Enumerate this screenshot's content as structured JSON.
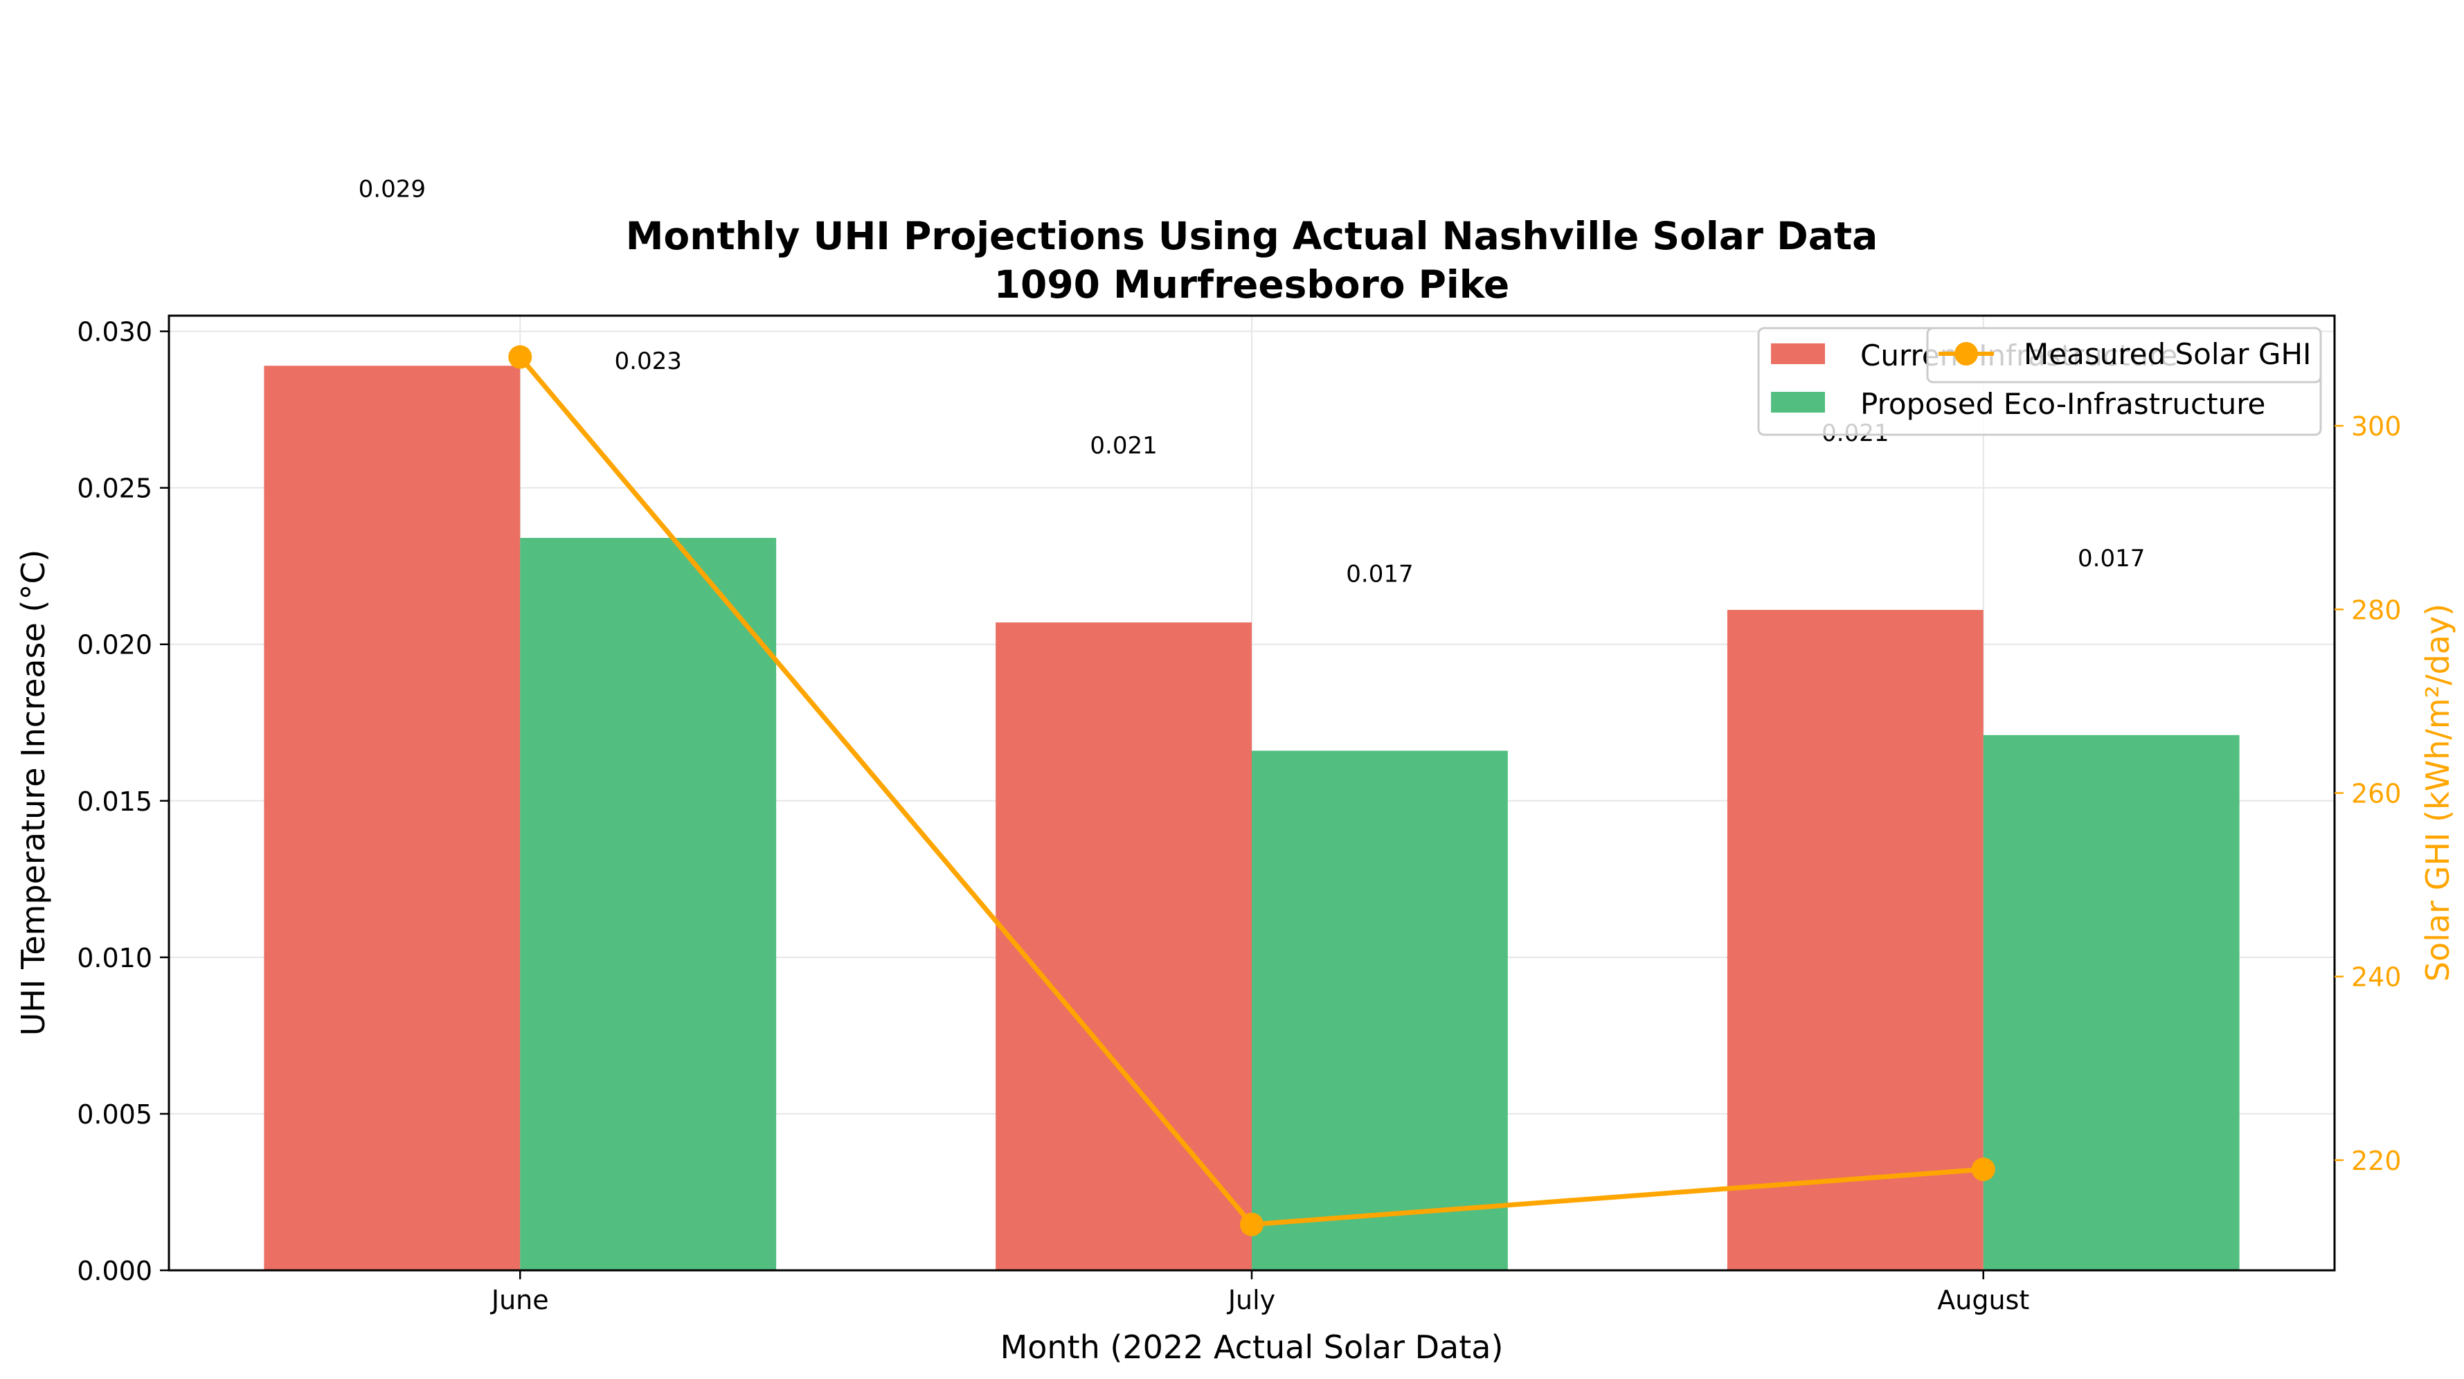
{
  "chart_data": {
    "type": "bar",
    "title": "Monthly UHI Projections Using Actual Nashville Solar Data",
    "subtitle": "1090 Murfreesboro Pike",
    "xlabel": "Month (2022 Actual Solar Data)",
    "ylabel": "UHI Temperature Increase (°C)",
    "y2label": "Solar GHI (kWh/m²/day)",
    "categories": [
      "June",
      "July",
      "August"
    ],
    "ylim": [
      0,
      0.0305
    ],
    "yticks": [
      "0.000",
      "0.005",
      "0.010",
      "0.015",
      "0.020",
      "0.025",
      "0.030"
    ],
    "y2lim": [
      208,
      312
    ],
    "y2ticks": [
      "220",
      "240",
      "260",
      "280",
      "300"
    ],
    "grid": true,
    "series": [
      {
        "name": "Current Infrastructure",
        "color": "#eb7063",
        "values": [
          0.0289,
          0.0207,
          0.0211
        ],
        "labels": [
          "0.029",
          "0.021",
          "0.021"
        ]
      },
      {
        "name": "Proposed Eco-Infrastructure",
        "color": "#52be80",
        "values": [
          0.0234,
          0.0166,
          0.0171
        ],
        "labels": [
          "0.023",
          "0.017",
          "0.017"
        ]
      }
    ],
    "line_series": {
      "name": "Measured Solar GHI",
      "color": "#ffa500",
      "axis": "right",
      "values": [
        307.5,
        213,
        219
      ]
    },
    "legend_bars_placement": "top-right",
    "legend_line_placement": "top-right"
  }
}
